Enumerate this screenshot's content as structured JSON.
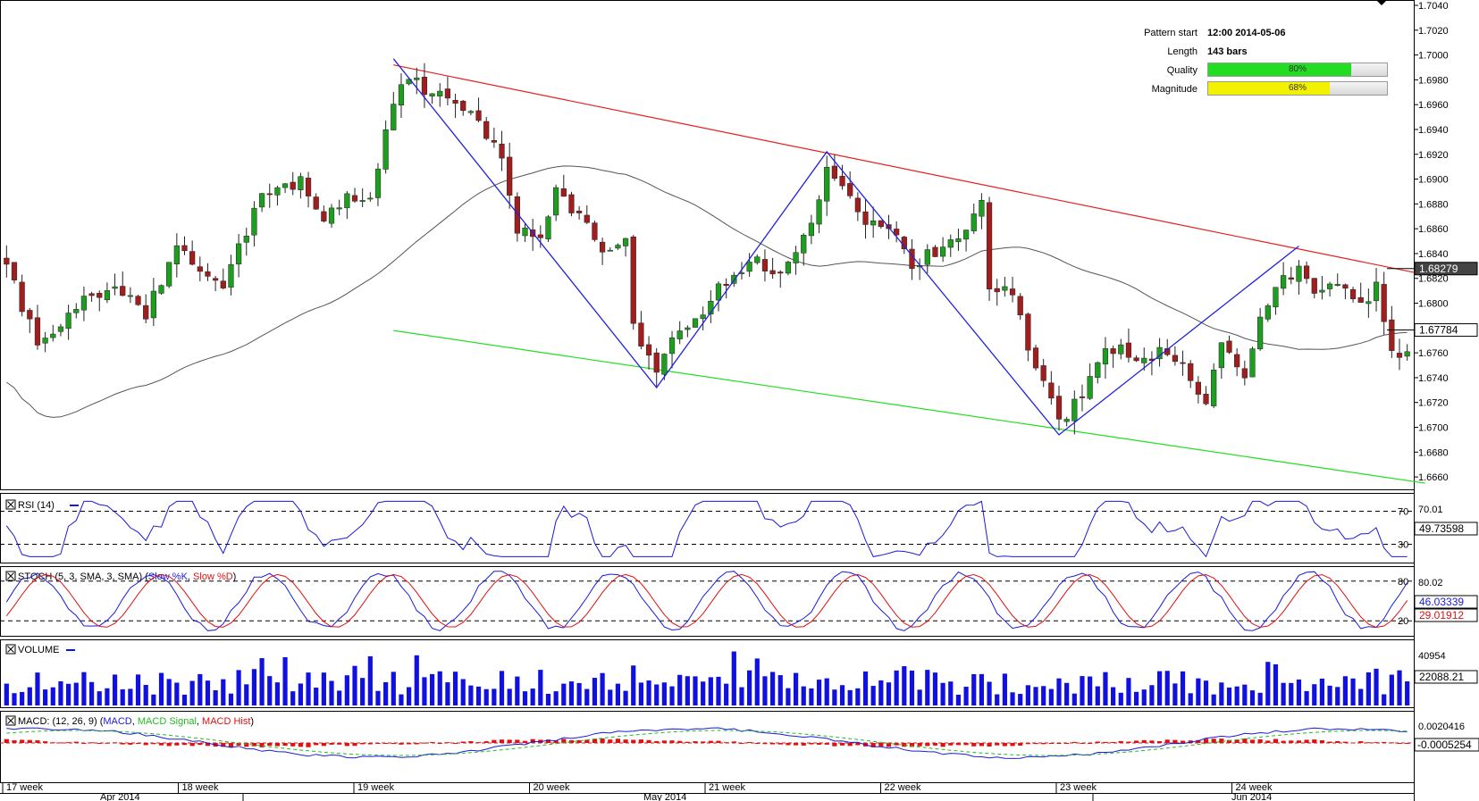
{
  "pattern_info": {
    "pattern_start_label": "Pattern start",
    "pattern_start_value": "12:00 2014-05-06",
    "length_label": "Length",
    "length_value": "143 bars",
    "quality_label": "Quality",
    "quality_value": "80%",
    "quality_fraction": 0.8,
    "quality_color": "#22dd22",
    "magnitude_label": "Magnitude",
    "magnitude_value": "68%",
    "magnitude_fraction": 0.68,
    "magnitude_color": "#f2f200"
  },
  "panels": {
    "rsi": {
      "title": "RSI (14)",
      "levels": [
        "70",
        "30"
      ],
      "level_values": [
        70,
        30
      ],
      "scale_label": "70.01",
      "current": "49.73598",
      "color": "#1a1adb"
    },
    "stoch": {
      "title_prefix": "STOCH (5, 3, SMA, 3, SMA) (",
      "k_label": "Slow %K",
      "d_label": "Slow %D",
      "title_suffix": ")",
      "levels": [
        "80",
        "20"
      ],
      "level_values": [
        80,
        20
      ],
      "scale_label": "80.02",
      "k_current": "46.03339",
      "d_current": "29.01912",
      "k_color": "#1a1adb",
      "d_color": "#e01010"
    },
    "volume": {
      "title": "VOLUME",
      "scale_label": "40954",
      "current": "22088.21",
      "color": "#1010e0"
    },
    "macd": {
      "title_prefix": "MACD: (12, 26, 9) (",
      "macd_label": "MACD",
      "signal_label": "MACD Signal",
      "hist_label": "MACD Hist",
      "title_suffix": ")",
      "scale_label": "0.0020416",
      "current": "-0.0005254",
      "macd_color": "#1a1adb",
      "signal_color": "#22bb22",
      "hist_color": "#e01010"
    }
  },
  "x_axis": {
    "week_labels": [
      "17 week",
      "18 week",
      "19 week",
      "20 week",
      "21 week",
      "22 week",
      "23 week",
      "24 week"
    ],
    "month_labels": [
      "Apr 2014",
      "May 2014",
      "Jun 2014"
    ]
  },
  "chart_data": {
    "type": "candlestick",
    "instrument_scale": "price",
    "ylim": [
      1.665,
      1.704
    ],
    "y_ticks": [
      1.666,
      1.668,
      1.67,
      1.672,
      1.674,
      1.676,
      1.678,
      1.68,
      1.682,
      1.684,
      1.686,
      1.688,
      1.69,
      1.692,
      1.694,
      1.696,
      1.698,
      1.7,
      1.702,
      1.704
    ],
    "y_tick_labels": [
      "1.6660",
      "1.6680",
      "1.6700",
      "1.6720",
      "1.6740",
      "1.6760",
      "1.6780",
      "1.6800",
      "1.6820",
      "1.6840",
      "1.6860",
      "1.6880",
      "1.6900",
      "1.6920",
      "1.6940",
      "1.6960",
      "1.6980",
      "1.7000",
      "1.7020",
      "1.7040"
    ],
    "bar_count": 182,
    "price_current_labels": [
      "1.68279",
      "1.67784"
    ],
    "price_current_values": [
      1.68279,
      1.67784
    ],
    "moving_average_color": "#555555",
    "channel": {
      "upper": {
        "start_bar": 50,
        "start_value": 1.6992,
        "end_bar": 181,
        "end_value": 1.6823,
        "color": "#e61e1e"
      },
      "lower": {
        "start_bar": 50,
        "start_value": 1.6778,
        "end_bar": 181,
        "end_value": 1.6655,
        "color": "#22dd22"
      }
    },
    "zigzag_color": "#2222dd",
    "zigzag": [
      [
        50,
        1.6997
      ],
      [
        84,
        1.6732
      ],
      [
        106,
        1.6922
      ],
      [
        136,
        1.6694
      ],
      [
        167,
        1.6846
      ]
    ],
    "candles_up_color": "#1e9e1e",
    "candles_down_color": "#a01e1e",
    "anchors": [
      [
        0,
        1.683
      ],
      [
        4,
        1.6768
      ],
      [
        10,
        1.68
      ],
      [
        16,
        1.6812
      ],
      [
        18,
        1.679
      ],
      [
        22,
        1.6848
      ],
      [
        28,
        1.6812
      ],
      [
        33,
        1.6888
      ],
      [
        38,
        1.6898
      ],
      [
        41,
        1.687
      ],
      [
        44,
        1.6888
      ],
      [
        47,
        1.688
      ],
      [
        49,
        1.6945
      ],
      [
        51,
        1.698
      ],
      [
        55,
        1.6972
      ],
      [
        60,
        1.695
      ],
      [
        64,
        1.6918
      ],
      [
        66,
        1.6862
      ],
      [
        69,
        1.6852
      ],
      [
        71,
        1.689
      ],
      [
        74,
        1.687
      ],
      [
        77,
        1.684
      ],
      [
        80,
        1.6858
      ],
      [
        81,
        1.6778
      ],
      [
        84,
        1.6742
      ],
      [
        86,
        1.6778
      ],
      [
        89,
        1.6786
      ],
      [
        92,
        1.681
      ],
      [
        95,
        1.6822
      ],
      [
        97,
        1.6838
      ],
      [
        99,
        1.682
      ],
      [
        102,
        1.684
      ],
      [
        105,
        1.6878
      ],
      [
        106,
        1.6912
      ],
      [
        108,
        1.69
      ],
      [
        111,
        1.6868
      ],
      [
        114,
        1.686
      ],
      [
        117,
        1.683
      ],
      [
        120,
        1.6842
      ],
      [
        123,
        1.685
      ],
      [
        126,
        1.6878
      ],
      [
        127,
        1.6815
      ],
      [
        130,
        1.6808
      ],
      [
        133,
        1.6745
      ],
      [
        136,
        1.6705
      ],
      [
        138,
        1.6718
      ],
      [
        141,
        1.675
      ],
      [
        143,
        1.6765
      ],
      [
        146,
        1.6755
      ],
      [
        149,
        1.6762
      ],
      [
        152,
        1.675
      ],
      [
        155,
        1.672
      ],
      [
        157,
        1.6768
      ],
      [
        160,
        1.6745
      ],
      [
        163,
        1.6802
      ],
      [
        165,
        1.682
      ],
      [
        167,
        1.6826
      ],
      [
        169,
        1.6806
      ],
      [
        172,
        1.6815
      ],
      [
        175,
        1.68
      ],
      [
        177,
        1.6812
      ],
      [
        179,
        1.6758
      ],
      [
        181,
        1.6766
      ]
    ]
  }
}
